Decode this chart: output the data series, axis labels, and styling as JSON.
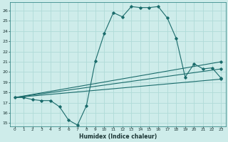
{
  "xlabel": "Humidex (Indice chaleur)",
  "xlim": [
    -0.5,
    23.5
  ],
  "ylim": [
    14.7,
    26.8
  ],
  "yticks": [
    15,
    16,
    17,
    18,
    19,
    20,
    21,
    22,
    23,
    24,
    25,
    26
  ],
  "xticks": [
    0,
    1,
    2,
    3,
    4,
    5,
    6,
    7,
    8,
    9,
    10,
    11,
    12,
    13,
    14,
    15,
    16,
    17,
    18,
    19,
    20,
    21,
    22,
    23
  ],
  "bg_color": "#ceecea",
  "grid_color": "#b0dbd8",
  "line_color": "#1a6b6b",
  "line1_x": [
    0,
    1,
    2,
    3,
    4,
    5,
    6,
    7,
    8,
    9,
    10,
    11,
    12,
    13,
    14,
    15,
    16,
    17,
    18,
    19,
    20,
    21,
    22,
    23
  ],
  "line1_y": [
    17.5,
    17.5,
    17.3,
    17.2,
    17.2,
    16.6,
    15.3,
    14.8,
    16.7,
    21.1,
    23.8,
    25.8,
    25.4,
    26.4,
    26.3,
    26.3,
    26.4,
    25.3,
    23.3,
    19.5,
    20.8,
    20.3,
    20.4,
    19.4
  ],
  "line2_x": [
    0,
    23
  ],
  "line2_y": [
    17.5,
    19.3
  ],
  "line3_x": [
    0,
    23
  ],
  "line3_y": [
    17.5,
    20.3
  ],
  "line4_x": [
    0,
    23
  ],
  "line4_y": [
    17.5,
    21.0
  ]
}
